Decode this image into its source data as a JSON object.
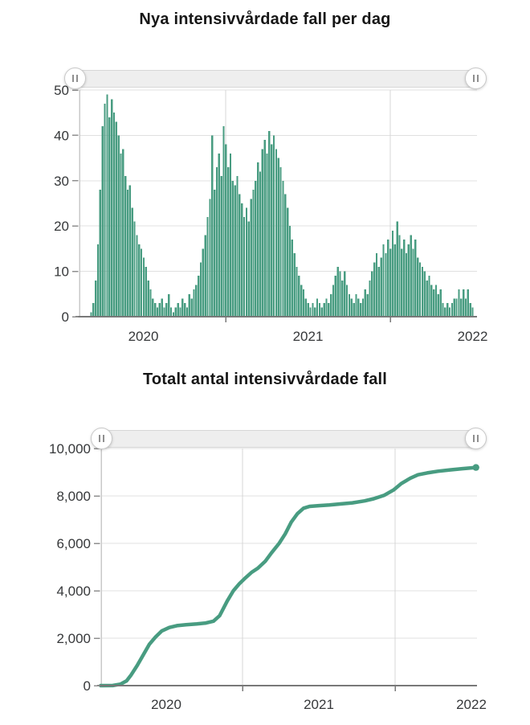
{
  "colors": {
    "series_green": "#489c81",
    "grid_line": "#e0e0e0",
    "grid_line_v": "#d7d7d7",
    "axis_line": "#787878",
    "y_axis_line": "#c9c9c9",
    "y_tick": "#8f8f8f",
    "tick_text": "#36383a",
    "title_text": "#161616",
    "slider_track_fill": "#eeeeee",
    "slider_track_border": "#d7d7d7",
    "handle_fill": "#ffffff",
    "handle_icon_bars": "#8f8f8f"
  },
  "chart_data": [
    {
      "type": "bar",
      "title": "Nya intensivvårdade fall per dag",
      "grid": true,
      "legend": "none",
      "x_axis": {
        "tick_labels": [
          "2020",
          "2021",
          "2022"
        ],
        "gridline_years": [
          2021,
          2022
        ],
        "start_year_fraction": 2020.183,
        "end_year_fraction": 2022.5
      },
      "y_axis": {
        "range": [
          0,
          50
        ],
        "ticks": [
          0,
          10,
          20,
          30,
          40,
          50
        ],
        "tick_labels": [
          "0",
          "10",
          "20",
          "30",
          "40",
          "50"
        ]
      },
      "values": [
        1,
        3,
        8,
        16,
        28,
        42,
        47,
        49,
        44,
        48,
        45,
        43,
        40,
        36,
        37,
        31,
        28,
        29,
        24,
        21,
        18,
        16,
        15,
        13,
        11,
        8,
        6,
        4,
        3,
        2,
        3,
        4,
        2,
        3,
        5,
        2,
        1,
        2,
        3,
        2,
        4,
        3,
        2,
        5,
        4,
        6,
        7,
        9,
        12,
        15,
        18,
        22,
        26,
        40,
        28,
        33,
        36,
        31,
        42,
        38,
        33,
        36,
        30,
        29,
        31,
        27,
        25,
        22,
        24,
        21,
        26,
        28,
        30,
        34,
        32,
        37,
        39,
        36,
        41,
        38,
        40,
        37,
        35,
        33,
        30,
        27,
        24,
        20,
        17,
        14,
        11,
        9,
        7,
        6,
        4,
        3,
        2,
        3,
        2,
        4,
        3,
        2,
        3,
        4,
        3,
        5,
        7,
        9,
        11,
        10,
        8,
        10,
        7,
        5,
        4,
        3,
        5,
        4,
        3,
        4,
        6,
        5,
        8,
        10,
        12,
        14,
        11,
        13,
        16,
        14,
        17,
        15,
        19,
        16,
        21,
        18,
        15,
        17,
        14,
        16,
        18,
        15,
        17,
        13,
        12,
        11,
        10,
        8,
        9,
        7,
        6,
        7,
        5,
        6,
        3,
        2,
        3,
        2,
        3,
        4,
        4,
        6,
        4,
        6,
        4,
        6,
        3,
        2
      ]
    },
    {
      "type": "line",
      "title": "Totalt antal intensivvårdade fall",
      "grid": true,
      "legend": "none",
      "x_axis": {
        "tick_labels": [
          "2020",
          "2021",
          "2022"
        ],
        "gridline_years": [
          2021,
          2022
        ]
      },
      "y_axis": {
        "range": [
          0,
          10000
        ],
        "ticks": [
          0,
          2000,
          4000,
          6000,
          8000,
          10000
        ],
        "tick_labels": [
          "0",
          "2,000",
          "4,000",
          "6,000",
          "8,000",
          "10,000"
        ]
      },
      "points": [
        [
          2020.07,
          0
        ],
        [
          2020.15,
          5
        ],
        [
          2020.2,
          60
        ],
        [
          2020.24,
          200
        ],
        [
          2020.27,
          450
        ],
        [
          2020.31,
          850
        ],
        [
          2020.35,
          1300
        ],
        [
          2020.39,
          1750
        ],
        [
          2020.43,
          2050
        ],
        [
          2020.47,
          2300
        ],
        [
          2020.52,
          2450
        ],
        [
          2020.57,
          2530
        ],
        [
          2020.63,
          2570
        ],
        [
          2020.7,
          2600
        ],
        [
          2020.76,
          2640
        ],
        [
          2020.81,
          2720
        ],
        [
          2020.85,
          2950
        ],
        [
          2020.9,
          3570
        ],
        [
          2020.94,
          4000
        ],
        [
          2020.98,
          4300
        ],
        [
          2021.02,
          4550
        ],
        [
          2021.06,
          4780
        ],
        [
          2021.1,
          4950
        ],
        [
          2021.15,
          5250
        ],
        [
          2021.19,
          5600
        ],
        [
          2021.24,
          6000
        ],
        [
          2021.28,
          6400
        ],
        [
          2021.32,
          6900
        ],
        [
          2021.36,
          7250
        ],
        [
          2021.4,
          7480
        ],
        [
          2021.44,
          7560
        ],
        [
          2021.5,
          7590
        ],
        [
          2021.57,
          7620
        ],
        [
          2021.64,
          7660
        ],
        [
          2021.72,
          7710
        ],
        [
          2021.8,
          7790
        ],
        [
          2021.86,
          7880
        ],
        [
          2021.93,
          8030
        ],
        [
          2021.99,
          8250
        ],
        [
          2022.04,
          8520
        ],
        [
          2022.1,
          8750
        ],
        [
          2022.15,
          8890
        ],
        [
          2022.21,
          8970
        ],
        [
          2022.28,
          9040
        ],
        [
          2022.36,
          9100
        ],
        [
          2022.44,
          9150
        ],
        [
          2022.53,
          9200
        ]
      ]
    }
  ]
}
